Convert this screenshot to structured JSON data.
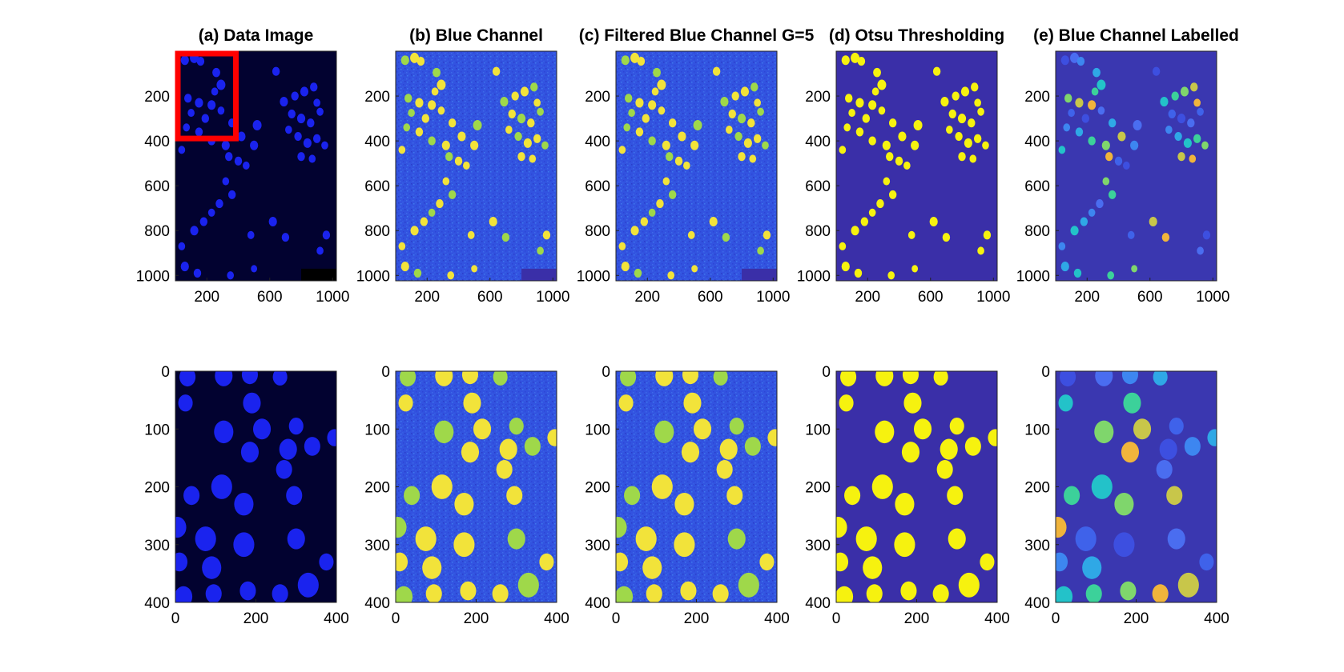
{
  "figure": {
    "panels": [
      {
        "id": "a",
        "title": "(a) Data Image",
        "style": "data"
      },
      {
        "id": "b",
        "title": "(b) Blue Channel",
        "style": "blue"
      },
      {
        "id": "c",
        "title": "(c) Filtered Blue Channel G=5",
        "style": "blue"
      },
      {
        "id": "d",
        "title": "(d) Otsu Thresholding",
        "style": "otsu"
      },
      {
        "id": "e",
        "title": "(e) Blue Channel Labelled",
        "style": "label"
      }
    ],
    "top_row": {
      "x_ticks": [
        "200",
        "600",
        "1000"
      ],
      "y_ticks": [
        "200",
        "400",
        "600",
        "800",
        "1000"
      ],
      "x_range": [
        0,
        1024
      ],
      "y_range": [
        0,
        1024
      ],
      "x_tick_values": [
        200,
        600,
        1000
      ],
      "y_tick_values": [
        200,
        400,
        600,
        800,
        1000
      ]
    },
    "bottom_row": {
      "x_ticks": [
        "0",
        "200",
        "400"
      ],
      "y_ticks": [
        "0",
        "100",
        "200",
        "300",
        "400"
      ],
      "x_range": [
        0,
        400
      ],
      "y_range": [
        0,
        400
      ],
      "x_tick_values": [
        0,
        200,
        400
      ],
      "y_tick_values": [
        0,
        100,
        200,
        300,
        400
      ]
    },
    "crop_box": {
      "x": [
        0,
        400
      ],
      "y": [
        0,
        400
      ],
      "color": "#ff0000"
    },
    "colors": {
      "data_bg": "#020230",
      "data_cell": "#1a23ee",
      "blue_bg": "#3253e0",
      "blue_cell": "#f2e33a",
      "otsu_bg": "#3a2fa8",
      "otsu_cell": "#f6f20f",
      "label_bg": "#3a37b0"
    },
    "top_cells": [
      [
        60,
        40,
        26
      ],
      [
        120,
        30,
        28
      ],
      [
        160,
        45,
        24
      ],
      [
        260,
        95,
        25
      ],
      [
        290,
        150,
        28
      ],
      [
        250,
        180,
        22
      ],
      [
        80,
        210,
        24
      ],
      [
        150,
        230,
        26
      ],
      [
        230,
        240,
        26
      ],
      [
        100,
        275,
        22
      ],
      [
        190,
        300,
        24
      ],
      [
        290,
        265,
        22
      ],
      [
        70,
        340,
        22
      ],
      [
        150,
        360,
        24
      ],
      [
        40,
        440,
        22
      ],
      [
        230,
        400,
        24
      ],
      [
        320,
        420,
        26
      ],
      [
        420,
        380,
        26
      ],
      [
        340,
        470,
        24
      ],
      [
        400,
        490,
        24
      ],
      [
        450,
        510,
        22
      ],
      [
        520,
        330,
        28
      ],
      [
        500,
        420,
        26
      ],
      [
        360,
        320,
        24
      ],
      [
        690,
        225,
        26
      ],
      [
        760,
        200,
        24
      ],
      [
        820,
        180,
        26
      ],
      [
        880,
        160,
        24
      ],
      [
        900,
        230,
        22
      ],
      [
        740,
        280,
        24
      ],
      [
        800,
        300,
        26
      ],
      [
        860,
        320,
        24
      ],
      [
        720,
        350,
        22
      ],
      [
        780,
        380,
        24
      ],
      [
        840,
        410,
        26
      ],
      [
        900,
        390,
        24
      ],
      [
        950,
        420,
        22
      ],
      [
        800,
        470,
        24
      ],
      [
        870,
        480,
        22
      ],
      [
        920,
        270,
        22
      ],
      [
        640,
        90,
        24
      ],
      [
        280,
        680,
        24
      ],
      [
        230,
        720,
        22
      ],
      [
        180,
        760,
        24
      ],
      [
        120,
        800,
        26
      ],
      [
        360,
        640,
        24
      ],
      [
        320,
        580,
        22
      ],
      [
        620,
        760,
        26
      ],
      [
        700,
        830,
        24
      ],
      [
        480,
        820,
        22
      ],
      [
        960,
        820,
        24
      ],
      [
        920,
        890,
        22
      ],
      [
        40,
        870,
        22
      ],
      [
        60,
        960,
        26
      ],
      [
        140,
        990,
        24
      ],
      [
        350,
        1000,
        22
      ],
      [
        500,
        970,
        20
      ]
    ],
    "bottom_cells": [
      [
        30,
        10,
        20
      ],
      [
        120,
        8,
        22
      ],
      [
        185,
        6,
        20
      ],
      [
        260,
        10,
        18
      ],
      [
        25,
        55,
        18
      ],
      [
        190,
        55,
        22
      ],
      [
        120,
        105,
        24
      ],
      [
        215,
        100,
        22
      ],
      [
        185,
        140,
        22
      ],
      [
        300,
        95,
        18
      ],
      [
        280,
        135,
        22
      ],
      [
        270,
        170,
        20
      ],
      [
        340,
        130,
        20
      ],
      [
        395,
        115,
        18
      ],
      [
        115,
        200,
        26
      ],
      [
        40,
        215,
        20
      ],
      [
        170,
        230,
        24
      ],
      [
        295,
        215,
        20
      ],
      [
        5,
        270,
        22
      ],
      [
        75,
        290,
        26
      ],
      [
        170,
        300,
        26
      ],
      [
        300,
        290,
        22
      ],
      [
        10,
        330,
        20
      ],
      [
        90,
        340,
        24
      ],
      [
        20,
        390,
        22
      ],
      [
        95,
        385,
        20
      ],
      [
        180,
        380,
        20
      ],
      [
        330,
        370,
        26
      ],
      [
        260,
        385,
        20
      ],
      [
        375,
        330,
        18
      ]
    ],
    "label_palette": [
      "#3d4fe0",
      "#4a6df0",
      "#3d86f0",
      "#2fa8e6",
      "#23c2c9",
      "#3cd19a",
      "#7fd66c",
      "#c8c64a",
      "#f0b43c",
      "#3f62ea"
    ]
  }
}
